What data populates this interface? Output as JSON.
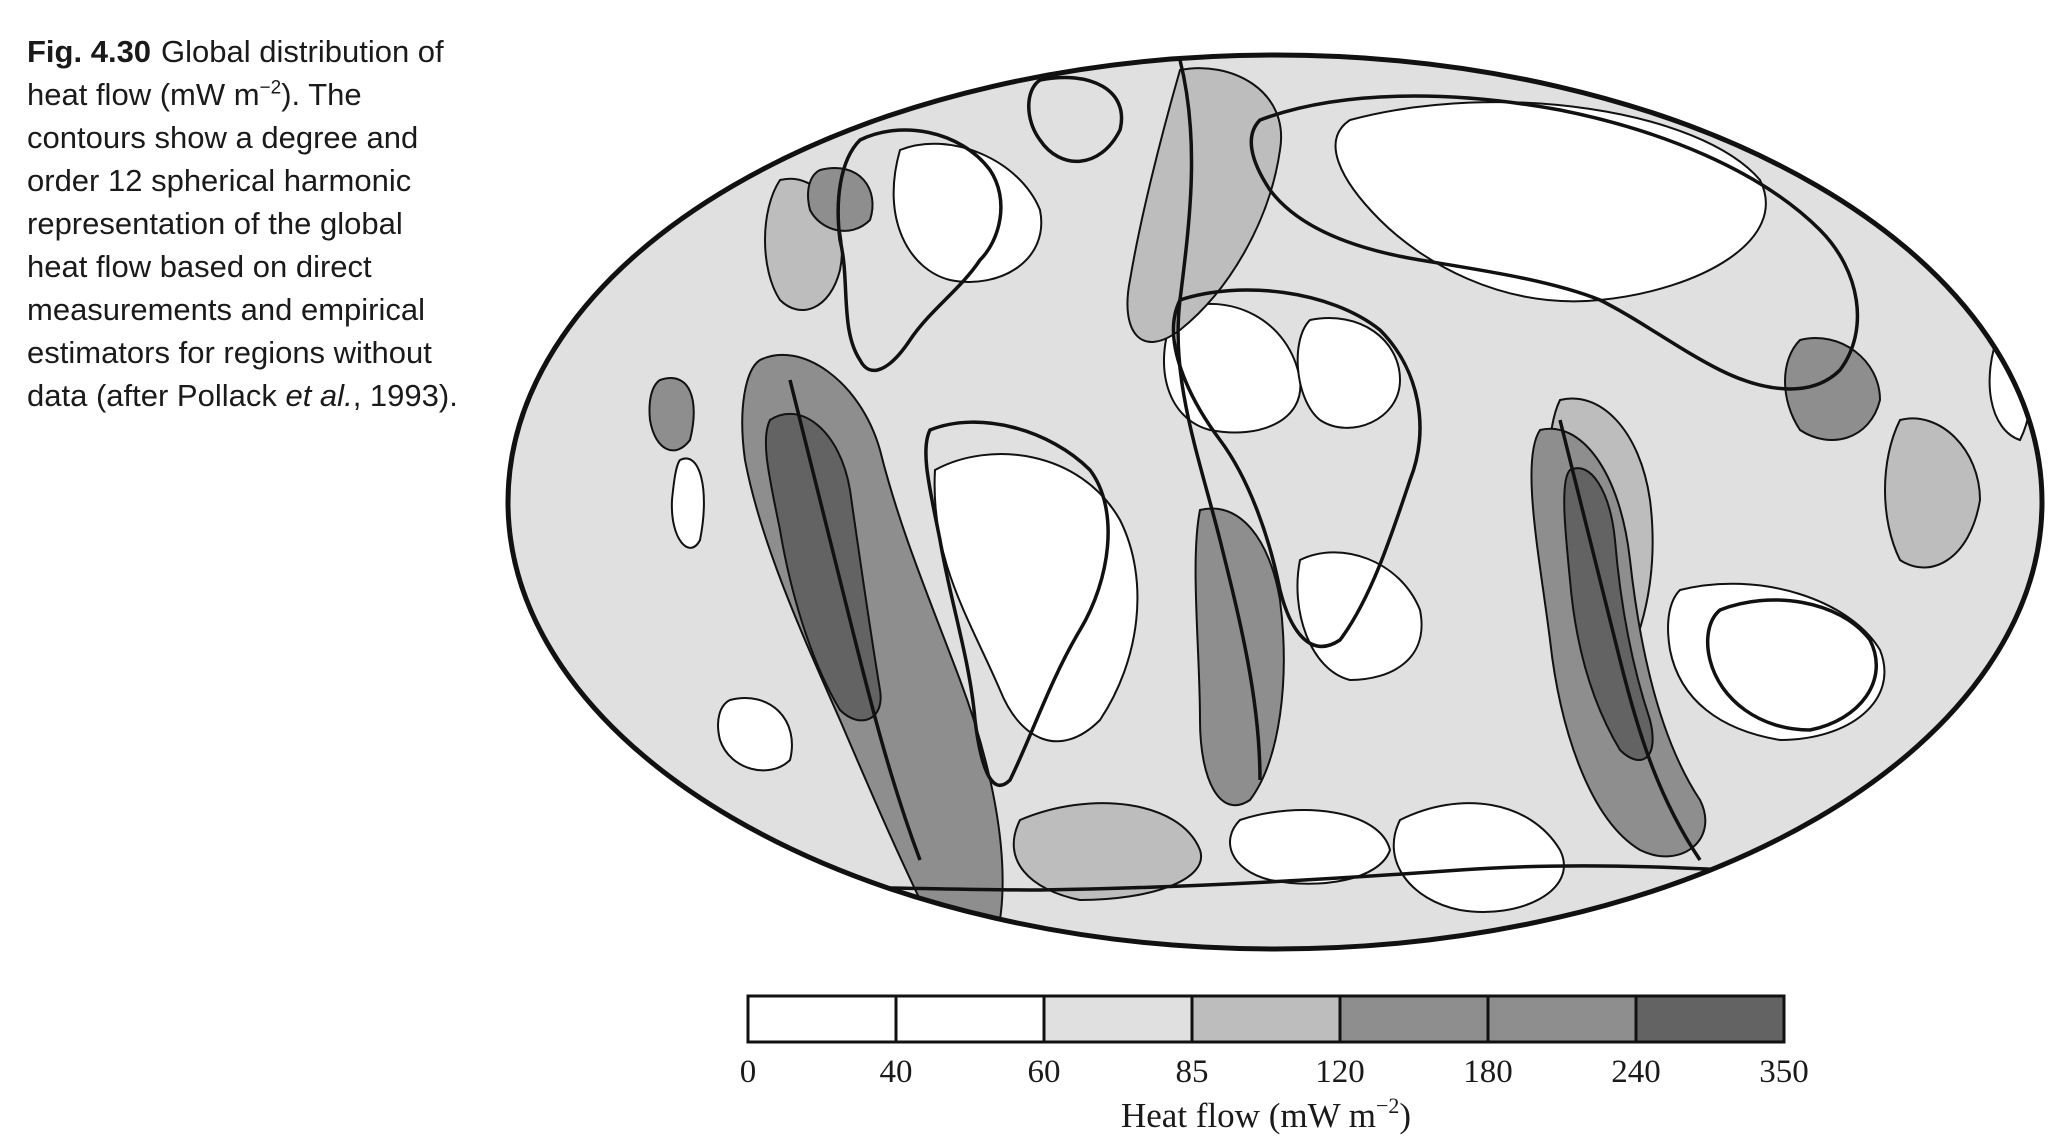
{
  "caption": {
    "figure_label": "Fig. 4.30",
    "text_main": "Global distribution of heat flow (mW m",
    "text_sup": "−2",
    "text_rest": "). The contours show a degree and order 12 spherical harmonic representation of the global heat flow based on direct measurements and empirical estimators for regions without data (after Pollack ",
    "text_italic": "et al.",
    "text_end": ", 1993)."
  },
  "colorbar": {
    "ticks": [
      "0",
      "40",
      "60",
      "85",
      "120",
      "180",
      "240",
      "350"
    ],
    "fills": [
      "#ffffff",
      "#ffffff",
      "#e0e0e0",
      "#bdbdbd",
      "#8e8e8e",
      "#8e8e8e",
      "#636363"
    ],
    "title_main": "Heat flow  (mW m",
    "title_sup": "−2",
    "title_end": ")"
  },
  "map": {
    "projection": "Mollweide",
    "shade_low": "#ffffff",
    "shade_mid": "#e0e0e0",
    "shade_high": "#bdbdbd",
    "shade_higher": "#8e8e8e",
    "shade_highest": "#636363"
  }
}
